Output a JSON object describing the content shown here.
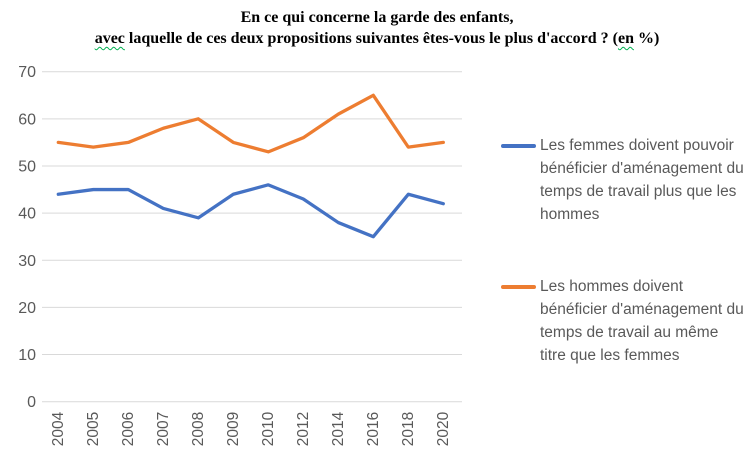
{
  "title": {
    "line1": "En ce qui concerne la garde des enfants,",
    "line2": {
      "word_avec": "avec",
      "middle": " laquelle de ces deux propositions suivantes êtes-vous le plus d'accord ? (",
      "word_en": "en",
      "end": " %)"
    }
  },
  "chart_data": {
    "type": "line",
    "title": "En ce qui concerne la garde des enfants, avec laquelle de ces deux propositions suivantes êtes-vous le plus d'accord ? (en %)",
    "categories": [
      "2004",
      "2005",
      "2006",
      "2007",
      "2008",
      "2009",
      "2010",
      "2012",
      "2014",
      "2016",
      "2018",
      "2020"
    ],
    "series": [
      {
        "name": "Les femmes doivent pouvoir bénéficier d'aménagement du temps de travail plus que les hommes",
        "color": "#4472C4",
        "values": [
          44,
          45,
          45,
          41,
          39,
          44,
          46,
          43,
          38,
          35,
          44,
          42
        ]
      },
      {
        "name": "Les hommes doivent bénéficier d'aménagement du temps de travail au même titre que les femmes",
        "color": "#ED7D31",
        "values": [
          55,
          54,
          55,
          58,
          60,
          55,
          53,
          56,
          61,
          65,
          54,
          55
        ]
      }
    ],
    "ylim": [
      0,
      70
    ],
    "yticks": [
      0,
      10,
      20,
      30,
      40,
      50,
      60,
      70
    ],
    "grid": true,
    "legend_position": "right",
    "xlabel": "",
    "ylabel": ""
  },
  "colors": {
    "gridline": "#D9D9D9",
    "axis_labels": "#595959",
    "legend_text": "#595959",
    "squiggle": "#00B050",
    "background": "#FFFFFF"
  }
}
